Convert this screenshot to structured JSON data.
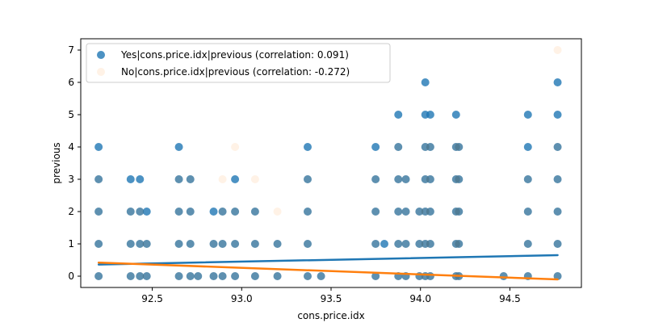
{
  "chart_data": {
    "type": "scatter",
    "xlabel": "cons.price.idx",
    "ylabel": "previous",
    "xlim": [
      92.1,
      94.9
    ],
    "ylim": [
      -0.35,
      7.35
    ],
    "xticks": [
      92.5,
      93.0,
      93.5,
      94.0,
      94.5
    ],
    "yticks": [
      0,
      1,
      2,
      3,
      4,
      5,
      6,
      7
    ],
    "legend_position": "upper-left",
    "series": [
      {
        "name": "Yes|cons.price.idx|previous (correlation: 0.091)",
        "color": "#1f77b4",
        "opacity": 0.8,
        "points": [
          [
            92.2,
            0
          ],
          [
            92.2,
            1
          ],
          [
            92.2,
            2
          ],
          [
            92.2,
            3
          ],
          [
            92.2,
            4
          ],
          [
            92.379,
            0
          ],
          [
            92.379,
            1
          ],
          [
            92.379,
            2
          ],
          [
            92.379,
            3
          ],
          [
            92.431,
            0
          ],
          [
            92.431,
            1
          ],
          [
            92.431,
            2
          ],
          [
            92.431,
            3
          ],
          [
            92.469,
            0
          ],
          [
            92.469,
            1
          ],
          [
            92.469,
            2
          ],
          [
            92.649,
            0
          ],
          [
            92.649,
            1
          ],
          [
            92.649,
            2
          ],
          [
            92.649,
            3
          ],
          [
            92.649,
            4
          ],
          [
            92.713,
            0
          ],
          [
            92.713,
            1
          ],
          [
            92.713,
            2
          ],
          [
            92.713,
            3
          ],
          [
            92.756,
            0
          ],
          [
            92.843,
            0
          ],
          [
            92.843,
            1
          ],
          [
            92.843,
            2
          ],
          [
            92.893,
            0
          ],
          [
            92.893,
            1
          ],
          [
            92.893,
            2
          ],
          [
            92.963,
            0
          ],
          [
            92.963,
            1
          ],
          [
            92.963,
            2
          ],
          [
            92.963,
            3
          ],
          [
            93.075,
            0
          ],
          [
            93.075,
            1
          ],
          [
            93.075,
            2
          ],
          [
            93.2,
            0
          ],
          [
            93.2,
            1
          ],
          [
            93.369,
            0
          ],
          [
            93.369,
            1
          ],
          [
            93.369,
            2
          ],
          [
            93.369,
            3
          ],
          [
            93.369,
            4
          ],
          [
            93.444,
            0
          ],
          [
            93.749,
            0
          ],
          [
            93.749,
            1
          ],
          [
            93.749,
            2
          ],
          [
            93.749,
            3
          ],
          [
            93.749,
            4
          ],
          [
            93.798,
            1
          ],
          [
            93.876,
            0
          ],
          [
            93.876,
            1
          ],
          [
            93.876,
            2
          ],
          [
            93.876,
            3
          ],
          [
            93.876,
            4
          ],
          [
            93.876,
            5
          ],
          [
            93.918,
            0
          ],
          [
            93.918,
            1
          ],
          [
            93.918,
            2
          ],
          [
            93.918,
            3
          ],
          [
            93.994,
            0
          ],
          [
            93.994,
            1
          ],
          [
            93.994,
            2
          ],
          [
            94.027,
            0
          ],
          [
            94.027,
            1
          ],
          [
            94.027,
            2
          ],
          [
            94.027,
            3
          ],
          [
            94.027,
            4
          ],
          [
            94.027,
            5
          ],
          [
            94.027,
            6
          ],
          [
            94.055,
            0
          ],
          [
            94.055,
            1
          ],
          [
            94.055,
            2
          ],
          [
            94.055,
            3
          ],
          [
            94.055,
            4
          ],
          [
            94.055,
            5
          ],
          [
            94.199,
            0
          ],
          [
            94.199,
            1
          ],
          [
            94.199,
            2
          ],
          [
            94.199,
            3
          ],
          [
            94.199,
            4
          ],
          [
            94.199,
            5
          ],
          [
            94.215,
            0
          ],
          [
            94.215,
            1
          ],
          [
            94.215,
            2
          ],
          [
            94.215,
            3
          ],
          [
            94.215,
            4
          ],
          [
            94.465,
            0
          ],
          [
            94.601,
            0
          ],
          [
            94.601,
            1
          ],
          [
            94.601,
            2
          ],
          [
            94.601,
            3
          ],
          [
            94.601,
            4
          ],
          [
            94.601,
            5
          ],
          [
            94.767,
            0
          ],
          [
            94.767,
            1
          ],
          [
            94.767,
            2
          ],
          [
            94.767,
            3
          ],
          [
            94.767,
            4
          ],
          [
            94.767,
            5
          ],
          [
            94.767,
            6
          ]
        ],
        "trend": [
          [
            92.2,
            0.36
          ],
          [
            94.767,
            0.65
          ]
        ]
      },
      {
        "name": "No|cons.price.idx|previous (correlation: -0.272)",
        "color": "#ff7f0e",
        "opacity": 0.1,
        "points": [
          [
            92.2,
            0
          ],
          [
            92.2,
            1
          ],
          [
            92.2,
            2
          ],
          [
            92.2,
            3
          ],
          [
            92.379,
            0
          ],
          [
            92.379,
            1
          ],
          [
            92.379,
            2
          ],
          [
            92.431,
            0
          ],
          [
            92.431,
            1
          ],
          [
            92.431,
            2
          ],
          [
            92.469,
            0
          ],
          [
            92.469,
            1
          ],
          [
            92.649,
            0
          ],
          [
            92.649,
            1
          ],
          [
            92.649,
            2
          ],
          [
            92.649,
            3
          ],
          [
            92.713,
            0
          ],
          [
            92.713,
            1
          ],
          [
            92.713,
            2
          ],
          [
            92.713,
            3
          ],
          [
            92.756,
            0
          ],
          [
            92.843,
            0
          ],
          [
            92.843,
            1
          ],
          [
            92.893,
            0
          ],
          [
            92.893,
            1
          ],
          [
            92.893,
            2
          ],
          [
            92.893,
            3
          ],
          [
            92.963,
            0
          ],
          [
            92.963,
            1
          ],
          [
            92.963,
            2
          ],
          [
            92.963,
            4
          ],
          [
            93.075,
            0
          ],
          [
            93.075,
            1
          ],
          [
            93.075,
            2
          ],
          [
            93.075,
            3
          ],
          [
            93.2,
            0
          ],
          [
            93.2,
            1
          ],
          [
            93.2,
            2
          ],
          [
            93.369,
            0
          ],
          [
            93.369,
            1
          ],
          [
            93.369,
            2
          ],
          [
            93.369,
            3
          ],
          [
            93.444,
            0
          ],
          [
            93.749,
            0
          ],
          [
            93.749,
            1
          ],
          [
            93.749,
            2
          ],
          [
            93.749,
            3
          ],
          [
            93.876,
            0
          ],
          [
            93.876,
            1
          ],
          [
            93.876,
            2
          ],
          [
            93.876,
            3
          ],
          [
            93.876,
            4
          ],
          [
            93.918,
            0
          ],
          [
            93.918,
            1
          ],
          [
            93.918,
            2
          ],
          [
            93.918,
            3
          ],
          [
            93.994,
            0
          ],
          [
            93.994,
            1
          ],
          [
            93.994,
            2
          ],
          [
            94.027,
            0
          ],
          [
            94.027,
            1
          ],
          [
            94.027,
            2
          ],
          [
            94.027,
            3
          ],
          [
            94.027,
            4
          ],
          [
            94.055,
            0
          ],
          [
            94.055,
            1
          ],
          [
            94.055,
            2
          ],
          [
            94.055,
            3
          ],
          [
            94.055,
            4
          ],
          [
            94.199,
            0
          ],
          [
            94.199,
            1
          ],
          [
            94.199,
            2
          ],
          [
            94.199,
            3
          ],
          [
            94.199,
            4
          ],
          [
            94.215,
            0
          ],
          [
            94.215,
            1
          ],
          [
            94.215,
            2
          ],
          [
            94.215,
            3
          ],
          [
            94.215,
            4
          ],
          [
            94.465,
            0
          ],
          [
            94.601,
            0
          ],
          [
            94.601,
            1
          ],
          [
            94.601,
            2
          ],
          [
            94.601,
            3
          ],
          [
            94.767,
            0
          ],
          [
            94.767,
            1
          ],
          [
            94.767,
            2
          ],
          [
            94.767,
            3
          ],
          [
            94.767,
            4
          ],
          [
            94.767,
            7
          ]
        ],
        "trend": [
          [
            92.2,
            0.42
          ],
          [
            94.767,
            -0.1
          ]
        ]
      }
    ]
  }
}
